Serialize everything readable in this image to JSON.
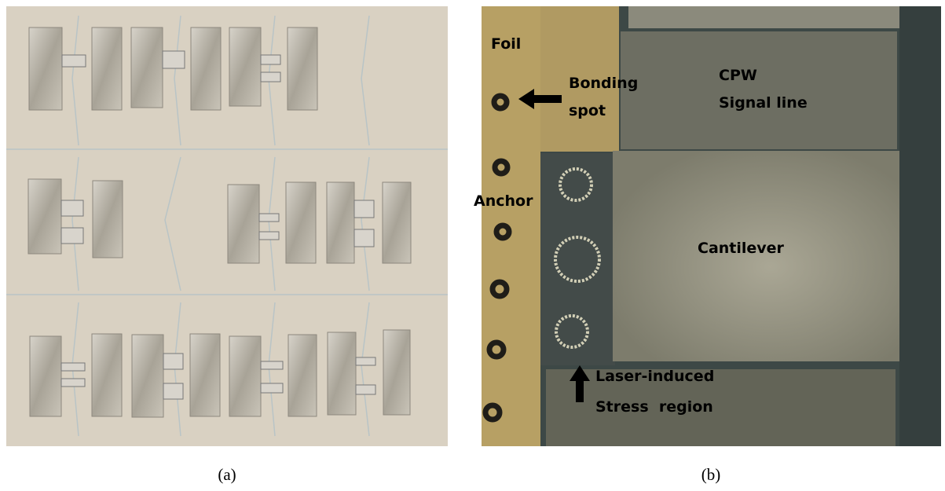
{
  "panels": [
    {
      "caption": "(a)"
    },
    {
      "caption": "(b)",
      "annotations": {
        "foil": "Foil",
        "bonding_spot": [
          "Bonding",
          "spot"
        ],
        "cpw": [
          "CPW",
          "Signal line"
        ],
        "anchor": "Anchor",
        "cantilever": "Cantilever",
        "laser": [
          "Laser-induced",
          "Stress  region"
        ]
      }
    }
  ]
}
